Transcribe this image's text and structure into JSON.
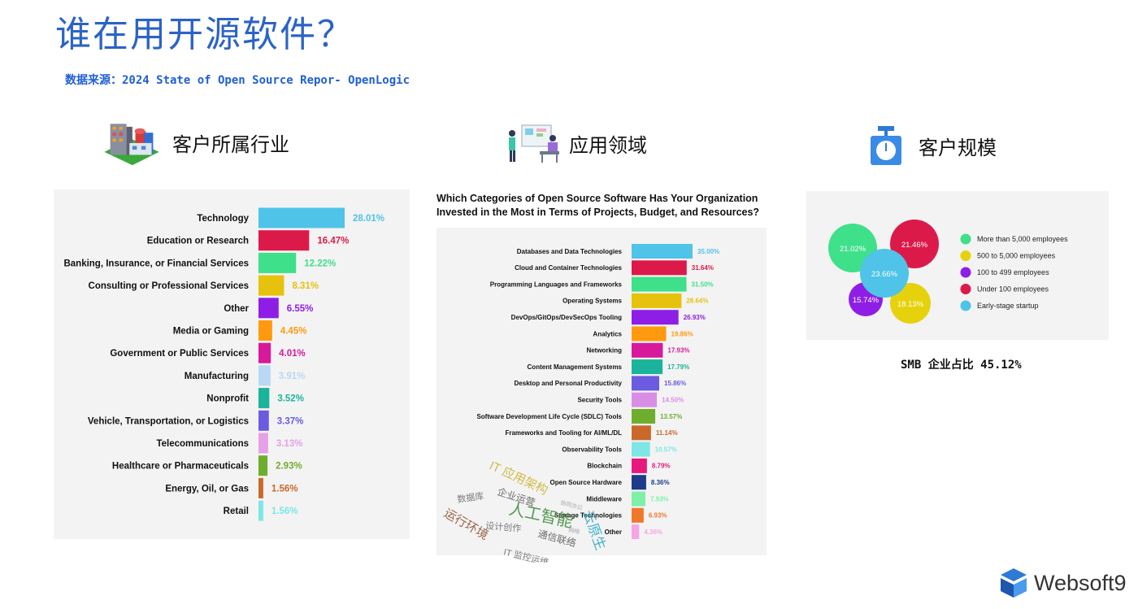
{
  "page": {
    "title": "谁在用开源软件？",
    "source": "数据来源：2024 State of Open Source Repor- OpenLogic",
    "sections": {
      "industry": "客户所属行业",
      "domain": "应用领域",
      "scale": "客户规模"
    },
    "smb_note": "SMB 企业占比 45.12%",
    "logo_text": "Websoft9",
    "wordcloud": [
      "IT 应用架构",
      "企业运营",
      "数据库",
      "人工智能",
      "运行环境",
      "设计创作",
      "通信联络",
      "IT 监控运维",
      "云原生",
      "协同办公",
      "网络"
    ]
  },
  "chart_data": [
    {
      "type": "bar",
      "orientation": "horizontal",
      "categories": [
        "Technology",
        "Education or Research",
        "Banking, Insurance, or Financial Services",
        "Consulting or Professional Services",
        "Other",
        "Media or Gaming",
        "Government or Public Services",
        "Manufacturing",
        "Nonprofit",
        "Vehicle, Transportation, or Logistics",
        "Telecommunications",
        "Healthcare or Pharmaceuticals",
        "Energy, Oil, or Gas",
        "Retail"
      ],
      "values": [
        28.01,
        16.47,
        12.22,
        8.31,
        6.55,
        4.45,
        4.01,
        3.91,
        3.52,
        3.37,
        3.13,
        2.93,
        1.56,
        1.56
      ],
      "labels": [
        "28.01%",
        "16.47%",
        "12.22%",
        "8.31%",
        "6.55%",
        "4.45%",
        "4.01%",
        "3.91%",
        "3.52%",
        "3.37%",
        "3.13%",
        "2.93%",
        "1.56%",
        "1.56%"
      ],
      "colors": [
        "#4fc3e8",
        "#dc1a4a",
        "#3ee08a",
        "#e6c20c",
        "#8e1ee6",
        "#ff9a0e",
        "#d8199c",
        "#b8d8f5",
        "#1bb39b",
        "#6a5be0",
        "#e6a0e8",
        "#6fae2c",
        "#c9682a",
        "#7fe6e6"
      ],
      "xlim": [
        0,
        28.01
      ],
      "grid": false
    },
    {
      "type": "bar",
      "orientation": "horizontal",
      "title": "Which Categories of Open Source Software Has Your Organization Invested in the Most in Terms of Projects, Budget, and Resources?",
      "categories": [
        "Databases and Data Technologies",
        "Cloud and Container Technologies",
        "Programming Languages and Frameworks",
        "Operating Systems",
        "DevOps/GitOps/DevSecOps Tooling",
        "Analytics",
        "Networking",
        "Content Management Systems",
        "Desktop and Personal Productivity",
        "Security Tools",
        "Software Development Life Cycle (SDLC) Tools",
        "Frameworks and Tooling for AI/ML/DL",
        "Observability Tools",
        "Blockchain",
        "Open Source Hardware",
        "Middleware",
        "Storage Technologies",
        "Other"
      ],
      "values": [
        35.0,
        31.64,
        31.5,
        28.64,
        26.93,
        19.86,
        17.93,
        17.79,
        15.86,
        14.5,
        13.57,
        11.14,
        10.57,
        8.79,
        8.36,
        7.93,
        6.93,
        4.36
      ],
      "labels": [
        "35.00%",
        "31.64%",
        "31.50%",
        "28.64%",
        "26.93%",
        "19.86%",
        "17.93%",
        "17.79%",
        "15.86%",
        "14.50%",
        "13.57%",
        "11.14%",
        "10.57%",
        "8.79%",
        "8.36%",
        "7.93%",
        "6.93%",
        "4.36%"
      ],
      "colors": [
        "#4fc3e8",
        "#dc1a4a",
        "#3ee08a",
        "#e6c20c",
        "#8e1ee6",
        "#ff9a0e",
        "#d8199c",
        "#1bb39b",
        "#6a5be0",
        "#d98ee6",
        "#6fae2c",
        "#c9682a",
        "#7fe6e6",
        "#e8197c",
        "#1e3a8a",
        "#7ff0a8",
        "#f0782a",
        "#f4a6e6"
      ],
      "xlim": [
        0,
        35
      ],
      "grid": false
    },
    {
      "type": "bubble",
      "series": [
        {
          "name": "More than 5,000 employees",
          "value": 21.02,
          "label": "21.02%",
          "color": "#3ee08a"
        },
        {
          "name": "500 to 5,000 employees",
          "value": 18.13,
          "label": "18.13%",
          "color": "#e6d20c"
        },
        {
          "name": "100 to 499 employees",
          "value": 15.74,
          "label": "15.74%",
          "color": "#8e1ee6"
        },
        {
          "name": "Under 100 employees",
          "value": 21.46,
          "label": "21.46%",
          "color": "#dc1a4a"
        },
        {
          "name": "Early-stage startup",
          "value": 23.66,
          "label": "23.66%",
          "color": "#4fc3e8"
        }
      ],
      "legend": "right"
    }
  ]
}
